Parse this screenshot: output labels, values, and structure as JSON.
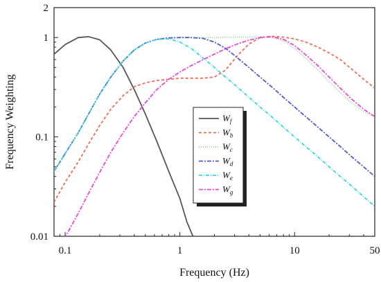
{
  "chart_data": {
    "type": "line",
    "title": "",
    "xlabel": "Frequency (Hz)",
    "ylabel": "Frequency Weighting",
    "xscale": "log",
    "yscale": "log",
    "xlim": [
      0.08,
      50
    ],
    "ylim": [
      0.01,
      2
    ],
    "x_ticks": [
      {
        "value": 0.1,
        "label": "0.1"
      },
      {
        "value": 1,
        "label": "1"
      },
      {
        "value": 10,
        "label": "10"
      },
      {
        "value": 50,
        "label": "50"
      }
    ],
    "y_ticks": [
      {
        "value": 0.01,
        "label": "0.01"
      },
      {
        "value": 0.1,
        "label": "0.1"
      },
      {
        "value": 1,
        "label": "1"
      },
      {
        "value": 2,
        "label": "2"
      }
    ],
    "grid": false,
    "legend_position": "center",
    "series": [
      {
        "name": "Wf",
        "base": "W",
        "sub": "f",
        "color": "#555555",
        "dash": "",
        "points": [
          [
            0.08,
            0.68
          ],
          [
            0.1,
            0.85
          ],
          [
            0.13,
            1.0
          ],
          [
            0.16,
            1.02
          ],
          [
            0.2,
            0.95
          ],
          [
            0.25,
            0.75
          ],
          [
            0.32,
            0.5
          ],
          [
            0.4,
            0.3
          ],
          [
            0.5,
            0.17
          ],
          [
            0.63,
            0.09
          ],
          [
            0.8,
            0.045
          ],
          [
            1.0,
            0.024
          ],
          [
            1.15,
            0.014
          ],
          [
            1.3,
            0.01
          ]
        ]
      },
      {
        "name": "Wb",
        "base": "W",
        "sub": "b",
        "color": "#f26a4f",
        "dash": "4,3",
        "points": [
          [
            0.08,
            0.022
          ],
          [
            0.1,
            0.035
          ],
          [
            0.13,
            0.056
          ],
          [
            0.16,
            0.085
          ],
          [
            0.2,
            0.13
          ],
          [
            0.25,
            0.19
          ],
          [
            0.32,
            0.26
          ],
          [
            0.4,
            0.32
          ],
          [
            0.5,
            0.35
          ],
          [
            0.63,
            0.37
          ],
          [
            0.8,
            0.38
          ],
          [
            1.0,
            0.39
          ],
          [
            1.25,
            0.39
          ],
          [
            1.6,
            0.39
          ],
          [
            2.0,
            0.4
          ],
          [
            2.5,
            0.47
          ],
          [
            3.15,
            0.65
          ],
          [
            4.0,
            0.86
          ],
          [
            5.0,
            1.0
          ],
          [
            6.3,
            1.03
          ],
          [
            8.0,
            1.01
          ],
          [
            10,
            0.97
          ],
          [
            12.5,
            0.9
          ],
          [
            16,
            0.8
          ],
          [
            20,
            0.7
          ],
          [
            25,
            0.6
          ],
          [
            31.5,
            0.48
          ],
          [
            40,
            0.38
          ],
          [
            50,
            0.31
          ]
        ]
      },
      {
        "name": "Wc",
        "base": "W",
        "sub": "c",
        "color": "#8bd58b",
        "dash": "1,2",
        "points": [
          [
            0.08,
            0.045
          ],
          [
            0.1,
            0.068
          ],
          [
            0.13,
            0.11
          ],
          [
            0.16,
            0.17
          ],
          [
            0.2,
            0.27
          ],
          [
            0.25,
            0.4
          ],
          [
            0.32,
            0.58
          ],
          [
            0.4,
            0.75
          ],
          [
            0.5,
            0.88
          ],
          [
            0.63,
            0.96
          ],
          [
            0.8,
            0.99
          ],
          [
            1.0,
            1.0
          ],
          [
            1.25,
            1.0
          ],
          [
            1.6,
            1.0
          ],
          [
            2.0,
            1.0
          ],
          [
            2.5,
            1.01
          ],
          [
            3.15,
            1.01
          ],
          [
            4.0,
            1.01
          ],
          [
            5.0,
            1.02
          ],
          [
            6.3,
            1.0
          ],
          [
            8.0,
            0.93
          ],
          [
            10,
            0.78
          ],
          [
            12.5,
            0.62
          ],
          [
            16,
            0.47
          ],
          [
            20,
            0.36
          ],
          [
            25,
            0.28
          ],
          [
            31.5,
            0.22
          ],
          [
            40,
            0.18
          ],
          [
            50,
            0.16
          ]
        ]
      },
      {
        "name": "Wd",
        "base": "W",
        "sub": "d",
        "color": "#4f58d8",
        "dash": "6,2,2,2",
        "points": [
          [
            0.08,
            0.045
          ],
          [
            0.1,
            0.068
          ],
          [
            0.13,
            0.11
          ],
          [
            0.16,
            0.17
          ],
          [
            0.2,
            0.27
          ],
          [
            0.25,
            0.4
          ],
          [
            0.32,
            0.58
          ],
          [
            0.4,
            0.75
          ],
          [
            0.5,
            0.88
          ],
          [
            0.63,
            0.96
          ],
          [
            0.8,
            0.99
          ],
          [
            1.0,
            1.0
          ],
          [
            1.25,
            1.0
          ],
          [
            1.6,
            0.98
          ],
          [
            2.0,
            0.9
          ],
          [
            2.5,
            0.78
          ],
          [
            3.15,
            0.63
          ],
          [
            4.0,
            0.5
          ],
          [
            5.0,
            0.4
          ],
          [
            6.3,
            0.32
          ],
          [
            8.0,
            0.25
          ],
          [
            10,
            0.2
          ],
          [
            12.5,
            0.16
          ],
          [
            16,
            0.125
          ],
          [
            20,
            0.1
          ],
          [
            25,
            0.08
          ],
          [
            31.5,
            0.063
          ],
          [
            40,
            0.05
          ],
          [
            50,
            0.04
          ]
        ]
      },
      {
        "name": "We",
        "base": "W",
        "sub": "e",
        "color": "#33d6e0",
        "dash": "5,2,1,2",
        "points": [
          [
            0.08,
            0.045
          ],
          [
            0.1,
            0.068
          ],
          [
            0.13,
            0.11
          ],
          [
            0.16,
            0.17
          ],
          [
            0.2,
            0.27
          ],
          [
            0.25,
            0.4
          ],
          [
            0.32,
            0.58
          ],
          [
            0.4,
            0.75
          ],
          [
            0.5,
            0.88
          ],
          [
            0.63,
            0.96
          ],
          [
            0.8,
            0.97
          ],
          [
            1.0,
            0.9
          ],
          [
            1.25,
            0.78
          ],
          [
            1.6,
            0.62
          ],
          [
            2.0,
            0.5
          ],
          [
            2.5,
            0.4
          ],
          [
            3.15,
            0.32
          ],
          [
            4.0,
            0.25
          ],
          [
            5.0,
            0.2
          ],
          [
            6.3,
            0.16
          ],
          [
            8.0,
            0.125
          ],
          [
            10,
            0.1
          ],
          [
            12.5,
            0.08
          ],
          [
            16,
            0.063
          ],
          [
            20,
            0.05
          ],
          [
            25,
            0.04
          ],
          [
            31.5,
            0.032
          ],
          [
            40,
            0.025
          ],
          [
            50,
            0.02
          ]
        ]
      },
      {
        "name": "Wg",
        "base": "W",
        "sub": "g",
        "color": "#ee44dd",
        "dash": "6,2,2,2",
        "points": [
          [
            0.09,
            0.008
          ],
          [
            0.1,
            0.0098
          ],
          [
            0.13,
            0.017
          ],
          [
            0.16,
            0.027
          ],
          [
            0.2,
            0.044
          ],
          [
            0.25,
            0.07
          ],
          [
            0.32,
            0.11
          ],
          [
            0.4,
            0.16
          ],
          [
            0.5,
            0.22
          ],
          [
            0.63,
            0.3
          ],
          [
            0.8,
            0.38
          ],
          [
            1.0,
            0.45
          ],
          [
            1.25,
            0.52
          ],
          [
            1.6,
            0.6
          ],
          [
            2.0,
            0.68
          ],
          [
            2.5,
            0.77
          ],
          [
            3.15,
            0.86
          ],
          [
            4.0,
            0.94
          ],
          [
            5.0,
            1.0
          ],
          [
            6.3,
            1.02
          ],
          [
            8.0,
            0.96
          ],
          [
            10,
            0.83
          ],
          [
            12.5,
            0.67
          ],
          [
            16,
            0.52
          ],
          [
            20,
            0.4
          ],
          [
            25,
            0.31
          ],
          [
            31.5,
            0.24
          ],
          [
            40,
            0.19
          ],
          [
            50,
            0.16
          ]
        ]
      }
    ]
  }
}
